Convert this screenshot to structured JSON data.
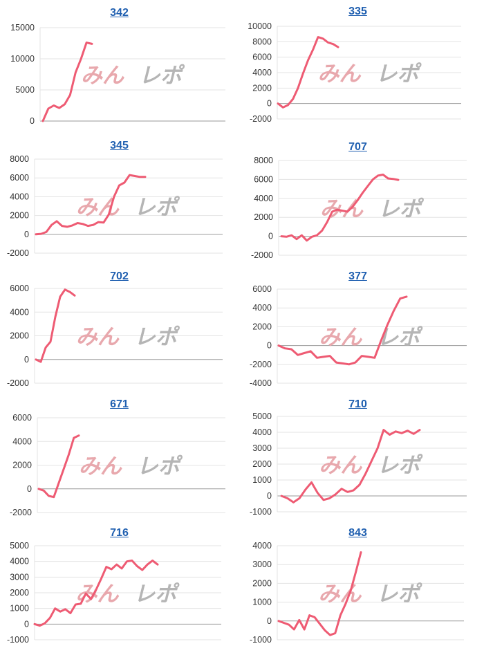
{
  "watermark": {
    "part1": "みん",
    "part2": "レポ"
  },
  "colors": {
    "line": "#ee5b73",
    "grid": "#e3e3e3",
    "axis": "#9a9a9a",
    "link": "#1f5fb0",
    "watermark_red": "#e8a8ad",
    "watermark_gray": "#b5b5b5"
  },
  "chart_data": [
    {
      "type": "line",
      "title": "342",
      "ylim": [
        0,
        15000
      ],
      "yticks": [
        0,
        5000,
        10000,
        15000
      ],
      "series": [
        {
          "values": [
            0,
            2000,
            2500,
            2100,
            2700,
            4200,
            7800,
            10000,
            12600,
            12400
          ]
        }
      ]
    },
    {
      "type": "line",
      "title": "335",
      "ylim": [
        -2000,
        10000
      ],
      "yticks": [
        -2000,
        0,
        2000,
        4000,
        6000,
        8000,
        10000
      ],
      "series": [
        {
          "values": [
            0,
            -500,
            -200,
            600,
            2000,
            3900,
            5600,
            7000,
            8600,
            8400,
            7900,
            7700,
            7300
          ]
        }
      ]
    },
    {
      "type": "line",
      "title": "345",
      "ylim": [
        -2000,
        8000
      ],
      "yticks": [
        -2000,
        0,
        2000,
        4000,
        6000,
        8000
      ],
      "series": [
        {
          "values": [
            0,
            50,
            250,
            1000,
            1400,
            900,
            800,
            950,
            1200,
            1100,
            900,
            1000,
            1300,
            1250,
            2100,
            4000,
            5200,
            5500,
            6300,
            6200,
            6100,
            6100
          ]
        }
      ]
    },
    {
      "type": "line",
      "title": "707",
      "ylim": [
        -2000,
        8000
      ],
      "yticks": [
        -2000,
        0,
        2000,
        4000,
        6000,
        8000
      ],
      "series": [
        {
          "values": [
            0,
            -50,
            100,
            -300,
            100,
            -450,
            -50,
            100,
            600,
            1500,
            2600,
            2800,
            2700,
            2600,
            3100,
            3800,
            4600,
            5300,
            6000,
            6400,
            6500,
            6100,
            6050,
            5950
          ]
        }
      ]
    },
    {
      "type": "line",
      "title": "702",
      "ylim": [
        -2000,
        6000
      ],
      "yticks": [
        -2000,
        0,
        2000,
        4000,
        6000
      ],
      "series": [
        {
          "values": [
            0,
            -200,
            1000,
            1500,
            3600,
            5300,
            5900,
            5700,
            5400
          ]
        }
      ]
    },
    {
      "type": "line",
      "title": "377",
      "ylim": [
        -4000,
        6000
      ],
      "yticks": [
        -4000,
        -2000,
        0,
        2000,
        4000,
        6000
      ],
      "series": [
        {
          "values": [
            0,
            -300,
            -400,
            -1000,
            -800,
            -600,
            -1300,
            -1200,
            -1100,
            -1800,
            -1900,
            -2000,
            -1800,
            -1100,
            -1200,
            -1300,
            500,
            2200,
            3700,
            5000,
            5200
          ]
        }
      ]
    },
    {
      "type": "line",
      "title": "671",
      "ylim": [
        -2000,
        6000
      ],
      "yticks": [
        -2000,
        0,
        2000,
        4000,
        6000
      ],
      "series": [
        {
          "values": [
            0,
            -150,
            -600,
            -700,
            500,
            1700,
            2900,
            4300,
            4500
          ]
        }
      ]
    },
    {
      "type": "line",
      "title": "710",
      "ylim": [
        -1000,
        5000
      ],
      "yticks": [
        -1000,
        0,
        1000,
        2000,
        3000,
        4000,
        5000
      ],
      "series": [
        {
          "values": [
            0,
            -150,
            -400,
            -150,
            400,
            850,
            200,
            -250,
            -150,
            100,
            450,
            250,
            350,
            700,
            1400,
            2200,
            3000,
            4150,
            3850,
            4050,
            3950,
            4100,
            3900,
            4150
          ]
        }
      ]
    },
    {
      "type": "line",
      "title": "716",
      "ylim": [
        -1000,
        5000
      ],
      "yticks": [
        -1000,
        0,
        1000,
        2000,
        3000,
        4000,
        5000
      ],
      "series": [
        {
          "values": [
            0,
            -100,
            50,
            400,
            1000,
            800,
            950,
            700,
            1250,
            1300,
            1950,
            1600,
            2200,
            2900,
            3650,
            3500,
            3800,
            3550,
            4000,
            4050,
            3700,
            3450,
            3800,
            4050,
            3800
          ]
        }
      ]
    },
    {
      "type": "line",
      "title": "843",
      "ylim": [
        -1000,
        4000
      ],
      "yticks": [
        -1000,
        0,
        1000,
        2000,
        3000,
        4000
      ],
      "series": [
        {
          "values": [
            0,
            -100,
            -200,
            -450,
            50,
            -450,
            300,
            200,
            -150,
            -500,
            -750,
            -650,
            300,
            900,
            1600,
            2600,
            3650
          ]
        }
      ]
    }
  ]
}
